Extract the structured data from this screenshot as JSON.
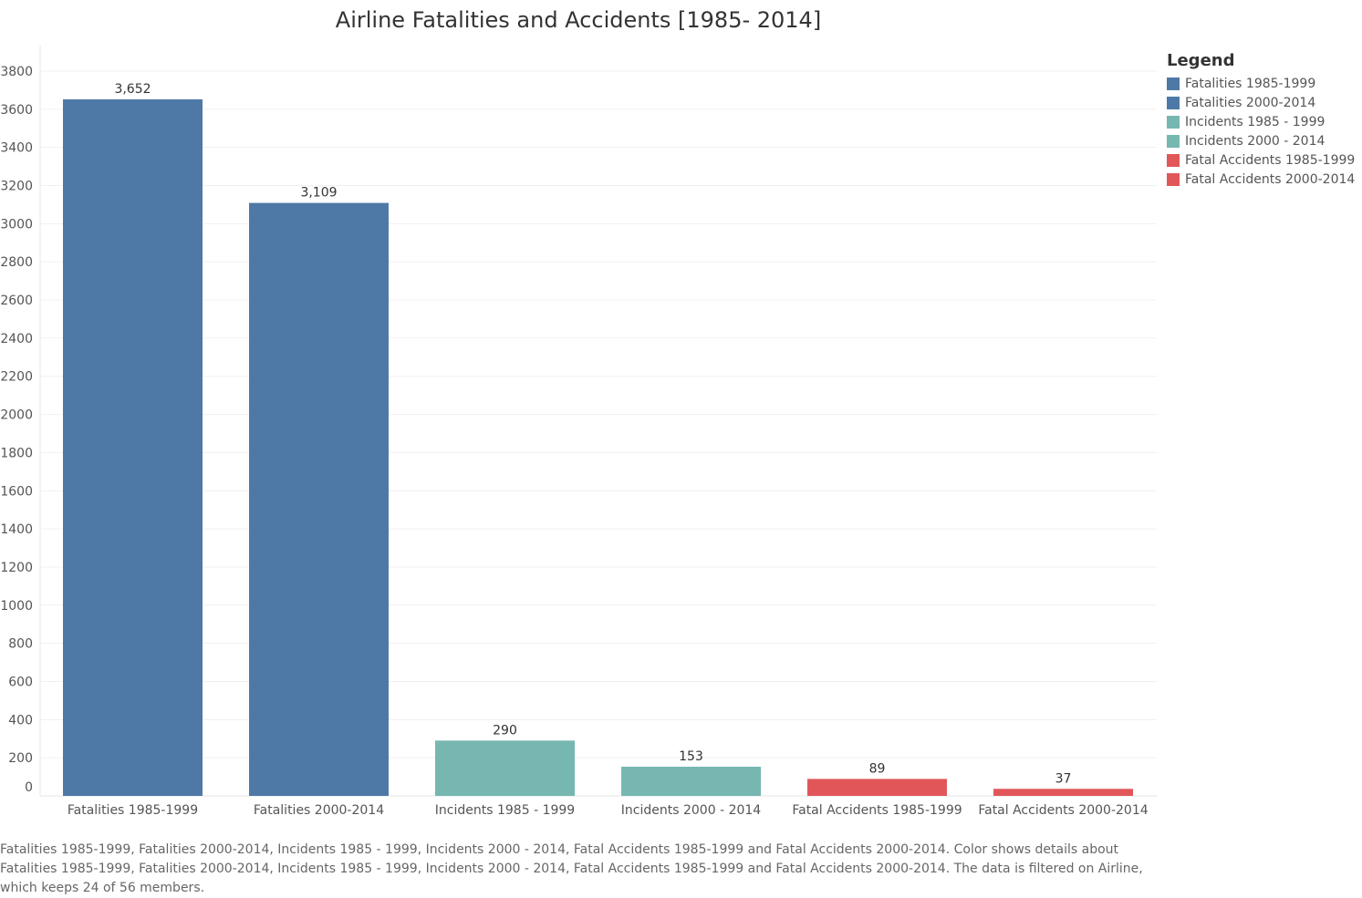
{
  "chart_data": {
    "type": "bar",
    "title": "Airline Fatalities and Accidents [1985- 2014]",
    "categories": [
      "Fatalities 1985-1999",
      "Fatalities 2000-2014",
      "Incidents 1985 - 1999",
      "Incidents 2000 - 2014",
      "Fatal Accidents 1985-1999",
      "Fatal Accidents 2000-2014"
    ],
    "values": [
      3652,
      3109,
      290,
      153,
      89,
      37
    ],
    "data_labels": [
      "3,652",
      "3,109",
      "290",
      "153",
      "89",
      "37"
    ],
    "colors": [
      "#4e79a7",
      "#4e79a7",
      "#76b7b2",
      "#76b7b2",
      "#e15759",
      "#e15759"
    ],
    "yticks": [
      0,
      200,
      400,
      600,
      800,
      1000,
      1200,
      1400,
      1600,
      1800,
      2000,
      2200,
      2400,
      2600,
      2800,
      3000,
      3200,
      3400,
      3600,
      3800
    ],
    "ylim": [
      0,
      3800
    ],
    "grid": true,
    "xlabel": "",
    "ylabel": "",
    "legend": {
      "title": "Legend",
      "position": "right",
      "items": [
        {
          "label": "Fatalities 1985-1999",
          "color": "#4e79a7"
        },
        {
          "label": "Fatalities 2000-2014",
          "color": "#4e79a7"
        },
        {
          "label": "Incidents 1985 - 1999",
          "color": "#76b7b2"
        },
        {
          "label": "Incidents 2000 - 2014",
          "color": "#76b7b2"
        },
        {
          "label": "Fatal Accidents 1985-1999",
          "color": "#e15759"
        },
        {
          "label": "Fatal Accidents 2000-2014",
          "color": "#e15759"
        }
      ]
    },
    "caption": "Fatalities 1985-1999, Fatalities 2000-2014, Incidents 1985 - 1999, Incidents 2000 - 2014, Fatal Accidents 1985-1999 and Fatal Accidents 2000-2014.  Color shows details about Fatalities 1985-1999, Fatalities 2000-2014, Incidents 1985 - 1999, Incidents 2000 - 2014, Fatal Accidents 1985-1999 and Fatal Accidents 2000-2014. The data is filtered on Airline, which keeps 24 of 56 members."
  }
}
